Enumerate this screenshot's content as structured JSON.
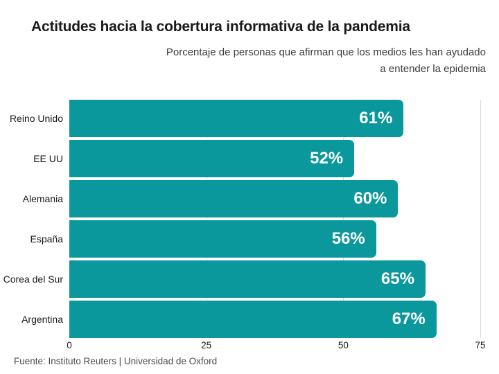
{
  "chart_data": {
    "type": "bar",
    "orientation": "horizontal",
    "title": "Actitudes hacia la cobertura informativa de la pandemia",
    "subtitle_lines": [
      "Porcentaje de personas que afirman que los medios les han ayudado",
      "a entender la epidemia"
    ],
    "categories": [
      "Reino Unido",
      "EE UU",
      "Alemania",
      "España",
      "Corea del Sur",
      "Argentina"
    ],
    "values": [
      61,
      52,
      60,
      56,
      65,
      67
    ],
    "value_labels": [
      "61%",
      "52%",
      "60%",
      "56%",
      "65%",
      "67%"
    ],
    "xlim": [
      0,
      75
    ],
    "x_ticks": [
      "0",
      "25",
      "50",
      "75"
    ],
    "grid": "vertical",
    "legend": "none",
    "bar_color": "#0b989c",
    "source": "Fuente: Instituto Reuters | Universidad de Oxford"
  }
}
